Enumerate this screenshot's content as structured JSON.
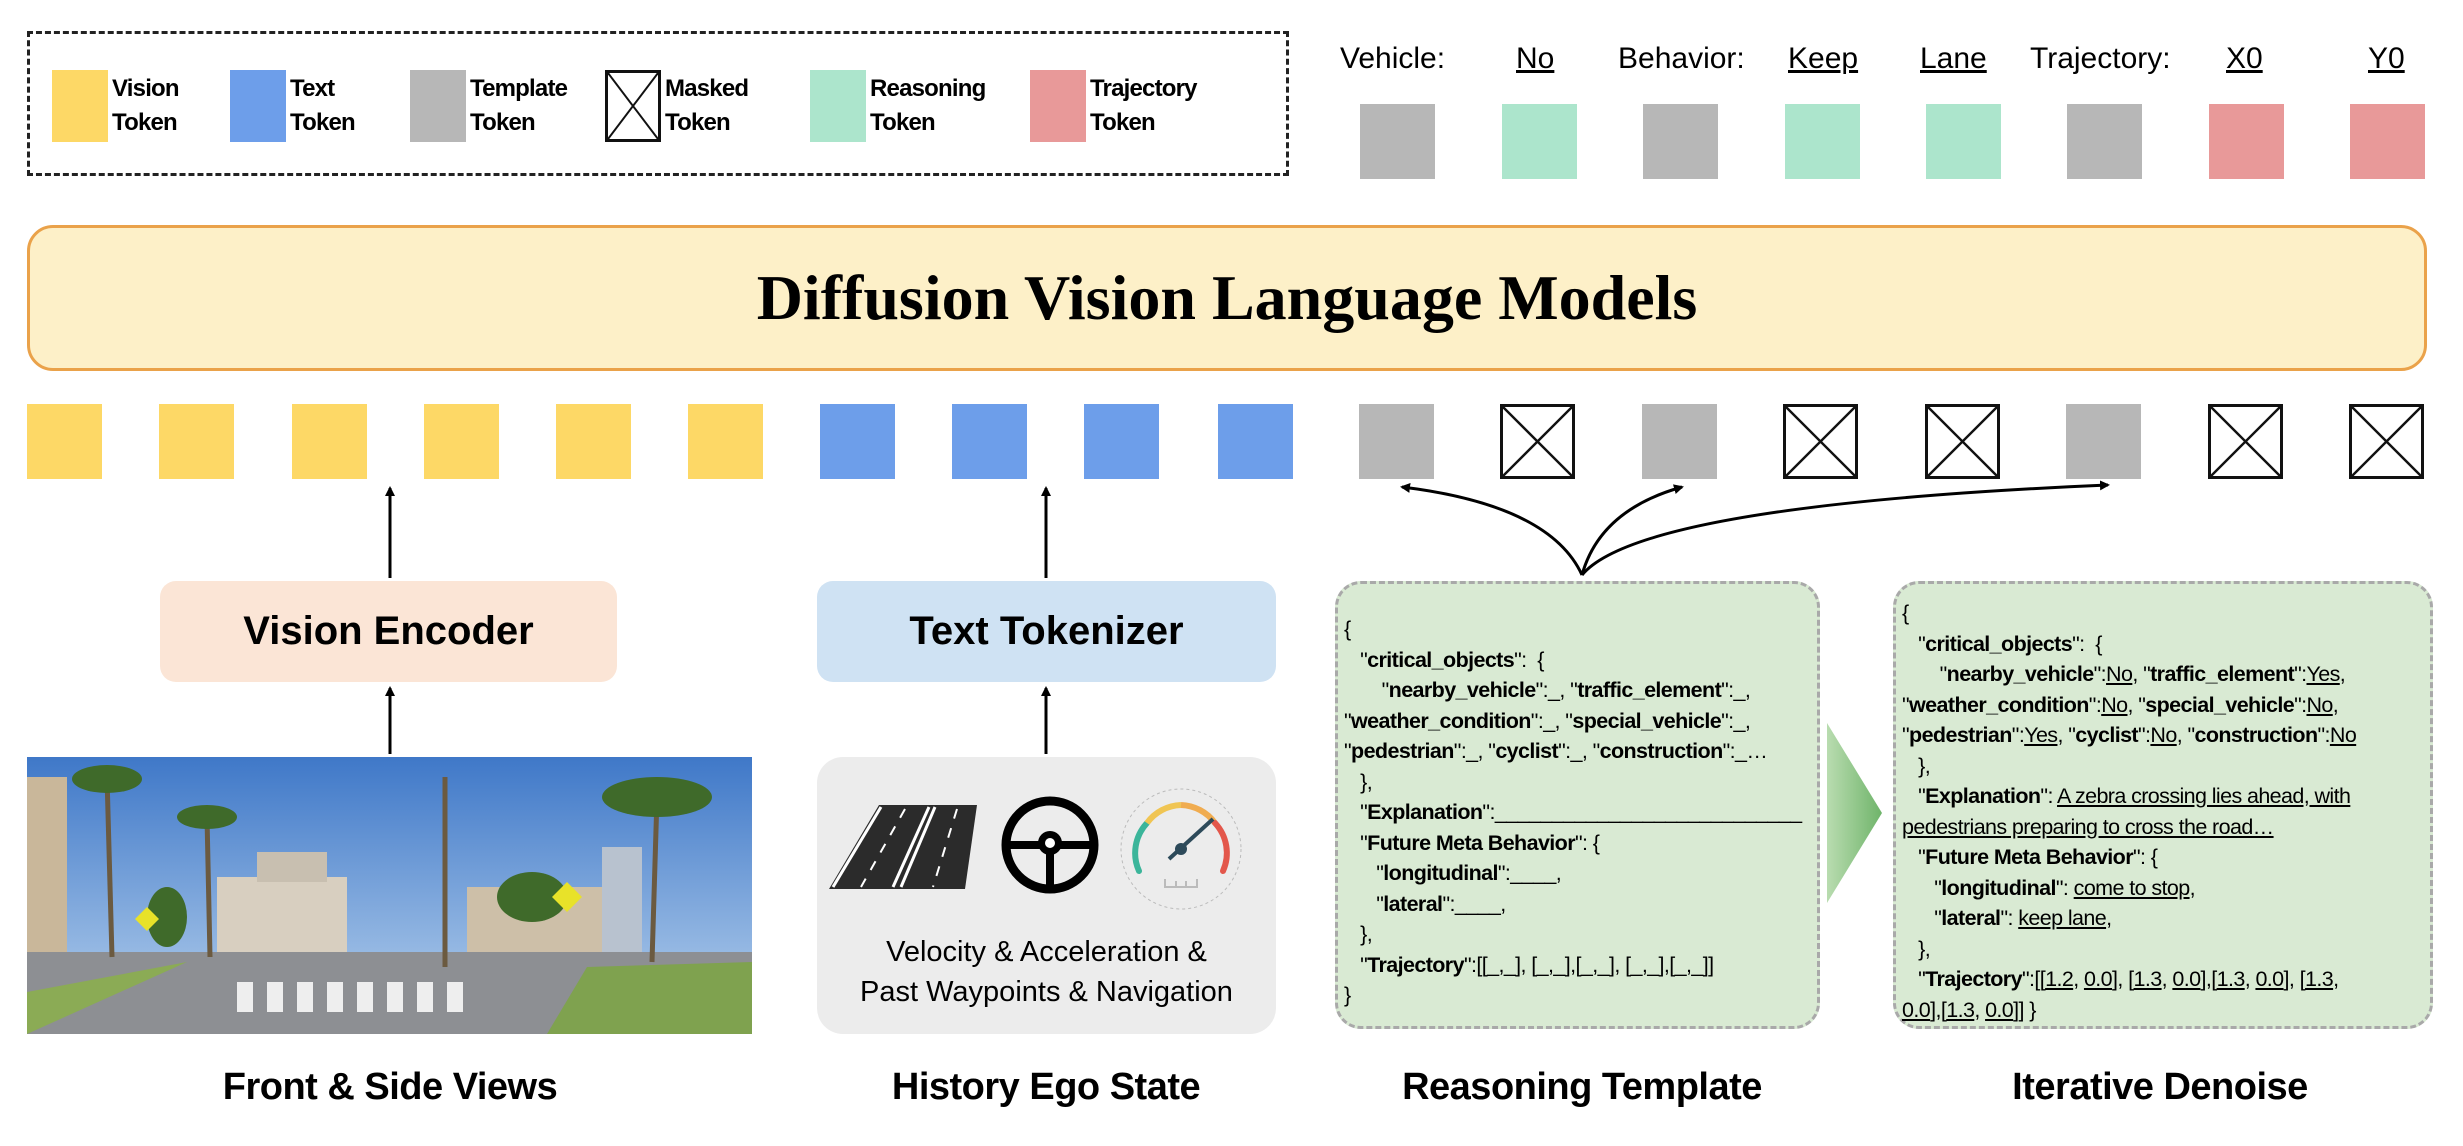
{
  "legend": [
    {
      "label1": "Vision",
      "label2": "Token",
      "color": "#fdd866",
      "kind": "fill"
    },
    {
      "label1": "Text",
      "label2": "Token",
      "color": "#6d9eea",
      "kind": "fill"
    },
    {
      "label1": "Template",
      "label2": "Token",
      "color": "#b7b7b7",
      "kind": "fill"
    },
    {
      "label1": "Masked",
      "label2": "Token",
      "color": "#ffffff",
      "kind": "masked"
    },
    {
      "label1": "Reasoning",
      "label2": "Token",
      "color": "#ace5cc",
      "kind": "fill"
    },
    {
      "label1": "Trajectory",
      "label2": "Token",
      "color": "#e89999",
      "kind": "fill"
    }
  ],
  "output_labels": [
    {
      "text": "Vehicle:",
      "underline": false
    },
    {
      "text": "No",
      "underline": true
    },
    {
      "text": "Behavior:",
      "underline": false
    },
    {
      "text": "Keep",
      "underline": true
    },
    {
      "text": "Lane",
      "underline": true
    },
    {
      "text": "Trajectory:",
      "underline": false
    },
    {
      "text": "X0",
      "underline": true
    },
    {
      "text": "Y0",
      "underline": true
    }
  ],
  "output_tokens": [
    "template",
    "reasoning",
    "template",
    "reasoning",
    "reasoning",
    "template",
    "trajectory",
    "trajectory"
  ],
  "input_tokens": [
    "vision",
    "vision",
    "vision",
    "vision",
    "vision",
    "vision",
    "text",
    "text",
    "text",
    "text",
    "template",
    "masked",
    "template",
    "masked",
    "masked",
    "template",
    "masked",
    "masked"
  ],
  "colors": {
    "vision": "#fdd866",
    "text": "#6d9eea",
    "template": "#b7b7b7",
    "reasoning": "#ace5cc",
    "trajectory": "#e89999",
    "banner_bg": "#fdf0c8",
    "banner_border": "#eaa24a",
    "vision_encoder_bg": "#fbe5d6",
    "text_tokenizer_bg": "#cfe2f3",
    "json_bg": "#d9ead3"
  },
  "banner": {
    "title": "Diffusion Vision Language Models"
  },
  "vision_encoder": {
    "label": "Vision Encoder"
  },
  "text_tokenizer": {
    "label": "Text Tokenizer"
  },
  "ego_state": {
    "line1": "Velocity & Acceleration &",
    "line2": "Past Waypoints & Navigation",
    "icons": [
      "road-lanes-icon",
      "steering-wheel-icon",
      "speedometer-icon"
    ]
  },
  "captions": {
    "views": "Front & Side Views",
    "ego": "History Ego State",
    "template": "Reasoning Template",
    "denoise": "Iterative Denoise"
  },
  "reasoning_template": [
    [
      [
        "n",
        "{"
      ]
    ],
    [
      [
        "n",
        "   \""
      ],
      [
        "b",
        "critical_objects"
      ],
      [
        "n",
        "\":  {"
      ]
    ],
    [
      [
        "n",
        "       \""
      ],
      [
        "b",
        "nearby_vehicle"
      ],
      [
        "n",
        "\":_, \""
      ],
      [
        "b",
        "traffic_element"
      ],
      [
        "n",
        "\":_,"
      ]
    ],
    [
      [
        "n",
        "\""
      ],
      [
        "b",
        "weather_condition"
      ],
      [
        "n",
        "\":_, \""
      ],
      [
        "b",
        "special_vehicle"
      ],
      [
        "n",
        "\":_,"
      ]
    ],
    [
      [
        "n",
        "\""
      ],
      [
        "b",
        "pedestrian"
      ],
      [
        "n",
        "\":_, \""
      ],
      [
        "b",
        "cyclist"
      ],
      [
        "n",
        "\":_, \""
      ],
      [
        "b",
        "construction"
      ],
      [
        "n",
        "\":_…"
      ]
    ],
    [
      [
        "n",
        "   },"
      ]
    ],
    [
      [
        "n",
        "   \""
      ],
      [
        "b",
        "Explanation"
      ],
      [
        "n",
        "\":___________________________"
      ]
    ],
    [
      [
        "n",
        "   \""
      ],
      [
        "b",
        "Future Meta Behavior"
      ],
      [
        "n",
        "\": {"
      ]
    ],
    [
      [
        "n",
        "      \""
      ],
      [
        "b",
        "longitudinal"
      ],
      [
        "n",
        "\":____,"
      ]
    ],
    [
      [
        "n",
        "      \""
      ],
      [
        "b",
        "lateral"
      ],
      [
        "n",
        "\":____,"
      ]
    ],
    [
      [
        "n",
        "   },"
      ]
    ],
    [
      [
        "n",
        "   \""
      ],
      [
        "b",
        "Trajectory"
      ],
      [
        "n",
        "\":[[_,_], [_,_],[_,_], [_,_],[_,_]]"
      ]
    ],
    [
      [
        "n",
        "}"
      ]
    ]
  ],
  "iterative_denoise": [
    [
      [
        "n",
        "{"
      ]
    ],
    [
      [
        "n",
        "   \""
      ],
      [
        "b",
        "critical_objects"
      ],
      [
        "n",
        "\":  {"
      ]
    ],
    [
      [
        "n",
        "       \""
      ],
      [
        "b",
        "nearby_vehicle"
      ],
      [
        "n",
        "\":"
      ],
      [
        "u",
        "No"
      ],
      [
        "n",
        ", \""
      ],
      [
        "b",
        "traffic_element"
      ],
      [
        "n",
        "\":"
      ],
      [
        "u",
        "Yes"
      ],
      [
        "n",
        ","
      ]
    ],
    [
      [
        "n",
        "\""
      ],
      [
        "b",
        "weather_condition"
      ],
      [
        "n",
        "\":"
      ],
      [
        "u",
        "No"
      ],
      [
        "n",
        ", \""
      ],
      [
        "b",
        "special_vehicle"
      ],
      [
        "n",
        "\":"
      ],
      [
        "u",
        "No"
      ],
      [
        "n",
        ","
      ]
    ],
    [
      [
        "n",
        "\""
      ],
      [
        "b",
        "pedestrian"
      ],
      [
        "n",
        "\":"
      ],
      [
        "u",
        "Yes"
      ],
      [
        "n",
        ", \""
      ],
      [
        "b",
        "cyclist"
      ],
      [
        "n",
        "\":"
      ],
      [
        "u",
        "No"
      ],
      [
        "n",
        ", \""
      ],
      [
        "b",
        "construction"
      ],
      [
        "n",
        "\":"
      ],
      [
        "u",
        "No"
      ]
    ],
    [
      [
        "n",
        "   },"
      ]
    ],
    [
      [
        "n",
        "   \""
      ],
      [
        "b",
        "Explanation"
      ],
      [
        "n",
        "\": "
      ],
      [
        "u",
        "A zebra crossing lies ahead, with"
      ]
    ],
    [
      [
        "u",
        "pedestrians preparing to cross the road…"
      ]
    ],
    [
      [
        "n",
        "   \""
      ],
      [
        "b",
        "Future Meta Behavior"
      ],
      [
        "n",
        "\": {"
      ]
    ],
    [
      [
        "n",
        "      \""
      ],
      [
        "b",
        "longitudinal"
      ],
      [
        "n",
        "\": "
      ],
      [
        "u",
        "come to stop"
      ],
      [
        "n",
        ","
      ]
    ],
    [
      [
        "n",
        "      \""
      ],
      [
        "b",
        "lateral"
      ],
      [
        "n",
        "\": "
      ],
      [
        "u",
        "keep lane"
      ],
      [
        "n",
        ","
      ]
    ],
    [
      [
        "n",
        "   },"
      ]
    ],
    [
      [
        "n",
        "   \""
      ],
      [
        "b",
        "Trajectory"
      ],
      [
        "n",
        "\":[["
      ],
      [
        "u",
        "1.2"
      ],
      [
        "n",
        ", "
      ],
      [
        "u",
        "0.0"
      ],
      [
        "n",
        "], ["
      ],
      [
        "u",
        "1.3"
      ],
      [
        "n",
        ", "
      ],
      [
        "u",
        "0.0"
      ],
      [
        "n",
        "],["
      ],
      [
        "u",
        "1.3"
      ],
      [
        "n",
        ", "
      ],
      [
        "u",
        "0.0"
      ],
      [
        "n",
        "], ["
      ],
      [
        "u",
        "1.3"
      ],
      [
        "n",
        ","
      ]
    ],
    [
      [
        "u",
        "0.0"
      ],
      [
        "n",
        "],["
      ],
      [
        "u",
        "1.3"
      ],
      [
        "n",
        ", "
      ],
      [
        "u",
        "0.0"
      ],
      [
        "n",
        "]] }"
      ]
    ]
  ]
}
